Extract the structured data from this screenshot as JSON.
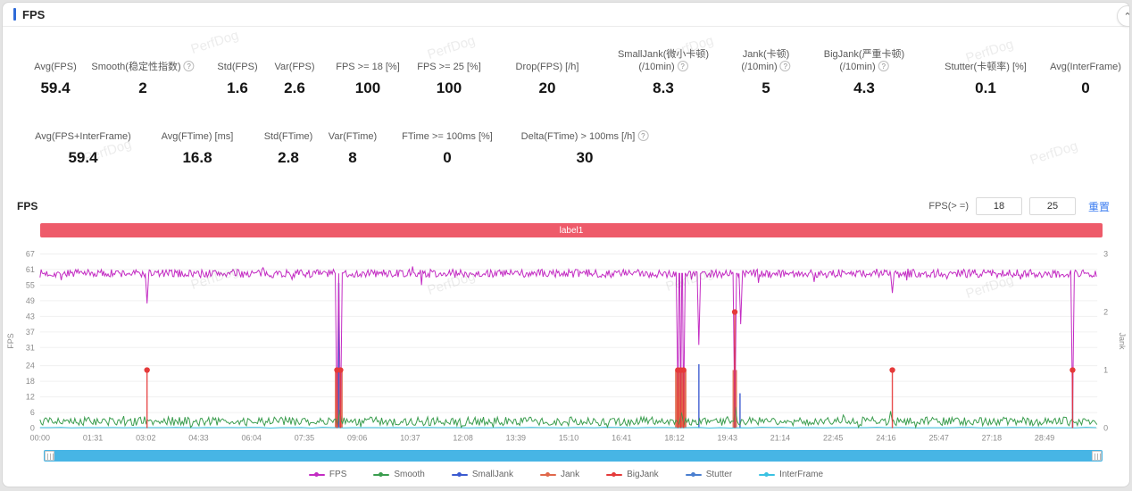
{
  "header": {
    "title": "FPS"
  },
  "icons": {
    "help": "?",
    "collapse": "⌃"
  },
  "watermark": {
    "text": "PerfDog"
  },
  "stats": {
    "row1": [
      {
        "label": "Avg(FPS)",
        "value": "59.4"
      },
      {
        "label": "Smooth(稳定性指数)",
        "value": "2",
        "help": true
      },
      {
        "label": "Std(FPS)",
        "value": "1.6"
      },
      {
        "label": "Var(FPS)",
        "value": "2.6"
      },
      {
        "label": "FPS >= 18 [%]",
        "value": "100"
      },
      {
        "label": "FPS >= 25 [%]",
        "value": "100"
      },
      {
        "label": "Drop(FPS) [/h]",
        "value": "20"
      },
      {
        "label": "SmallJank(微小卡顿)",
        "sublabel": "(/10min)",
        "value": "8.3",
        "help": true
      },
      {
        "label": "Jank(卡顿)",
        "sublabel": "(/10min)",
        "value": "5",
        "help": true
      },
      {
        "label": "BigJank(严重卡顿)",
        "sublabel": "(/10min)",
        "value": "4.3",
        "help": true
      },
      {
        "label": "Stutter(卡顿率) [%]",
        "value": "0.1"
      },
      {
        "label": "Avg(InterFrame)",
        "value": "0"
      }
    ],
    "row2": [
      {
        "label": "Avg(FPS+InterFrame)",
        "value": "59.4"
      },
      {
        "label": "Avg(FTime) [ms]",
        "value": "16.8"
      },
      {
        "label": "Std(FTime)",
        "value": "2.8"
      },
      {
        "label": "Var(FTime)",
        "value": "8"
      },
      {
        "label": "FTime >= 100ms [%]",
        "value": "0"
      },
      {
        "label": "Delta(FTime) > 100ms [/h]",
        "value": "30",
        "help": true
      }
    ]
  },
  "chart_controls": {
    "section_title": "FPS",
    "threshold_label": "FPS(> =)",
    "threshold1": "18",
    "threshold2": "25",
    "reset_label": "重置"
  },
  "chart_data": {
    "type": "line",
    "title": "",
    "annotation": {
      "label": "label1",
      "color": "#ee5b6a"
    },
    "x_axis": {
      "ticks": [
        "00:00",
        "01:31",
        "03:02",
        "04:33",
        "06:04",
        "07:35",
        "09:06",
        "10:37",
        "12:08",
        "13:39",
        "15:10",
        "16:41",
        "18:12",
        "19:43",
        "21:14",
        "22:45",
        "24:16",
        "25:47",
        "27:18",
        "28:49"
      ],
      "tick_interval_min": 1.5167,
      "t_max_min": 30.33
    },
    "y_left": {
      "label": "FPS",
      "ticks": [
        0,
        6,
        12,
        18,
        24,
        31,
        37,
        43,
        49,
        55,
        61,
        67
      ],
      "max": 67
    },
    "y_right": {
      "label": "Jank",
      "ticks": [
        0,
        1,
        2,
        3
      ],
      "max": 3
    },
    "series": {
      "fps": {
        "name": "FPS",
        "color": "#c32cc3",
        "axis": "left",
        "base": 59.5,
        "noise": 1.6,
        "dips": [
          [
            3.07,
            48
          ],
          [
            8.52,
            4
          ],
          [
            8.62,
            3
          ],
          [
            18.3,
            12
          ],
          [
            18.38,
            8
          ],
          [
            18.46,
            6
          ],
          [
            18.9,
            32
          ],
          [
            19.93,
            2
          ],
          [
            20.1,
            40
          ],
          [
            24.45,
            52
          ],
          [
            29.62,
            7
          ]
        ]
      },
      "smooth": {
        "name": "Smooth",
        "color": "#3a9d4e",
        "axis": "left",
        "base": 2.6,
        "noise": 1.7,
        "dips": [
          [
            8.6,
            7
          ],
          [
            18.4,
            6
          ],
          [
            19.95,
            8.2
          ],
          [
            24.4,
            6.5
          ]
        ]
      },
      "smalljank": {
        "name": "SmallJank",
        "color": "#3b5ad0",
        "axis": "right",
        "events": [
          [
            8.57,
            2.5
          ],
          [
            18.9,
            1.1
          ],
          [
            19.93,
            1.4
          ],
          [
            20.08,
            0.6
          ],
          [
            29.62,
            0.9
          ]
        ]
      },
      "jank": {
        "name": "Jank",
        "color": "#e0684b",
        "axis": "right",
        "events": [
          [
            8.52,
            1
          ],
          [
            8.62,
            1
          ],
          [
            18.28,
            1
          ],
          [
            18.32,
            1
          ],
          [
            18.36,
            1
          ],
          [
            18.4,
            1
          ],
          [
            18.44,
            1
          ],
          [
            18.48,
            1
          ],
          [
            19.93,
            1
          ]
        ]
      },
      "bigjank": {
        "name": "BigJank",
        "color": "#e53a3a",
        "axis": "right",
        "events": [
          [
            3.07,
            1
          ],
          [
            8.52,
            1
          ],
          [
            8.62,
            1
          ],
          [
            18.3,
            1
          ],
          [
            18.38,
            1
          ],
          [
            18.46,
            1
          ],
          [
            19.93,
            2
          ],
          [
            24.45,
            1
          ],
          [
            29.62,
            1
          ]
        ]
      },
      "stutter": {
        "name": "Stutter",
        "color": "#4a7fd0",
        "axis": "right",
        "events": []
      },
      "interframe": {
        "name": "InterFrame",
        "color": "#3bc2e2",
        "axis": "left",
        "base": 0.2,
        "noise": 0.1
      }
    },
    "legend": [
      {
        "label": "FPS",
        "color": "#c32cc3"
      },
      {
        "label": "Smooth",
        "color": "#3a9d4e"
      },
      {
        "label": "SmallJank",
        "color": "#3b5ad0"
      },
      {
        "label": "Jank",
        "color": "#e0684b"
      },
      {
        "label": "BigJank",
        "color": "#e53a3a"
      },
      {
        "label": "Stutter",
        "color": "#4a7fd0"
      },
      {
        "label": "InterFrame",
        "color": "#3bc2e2"
      }
    ]
  }
}
